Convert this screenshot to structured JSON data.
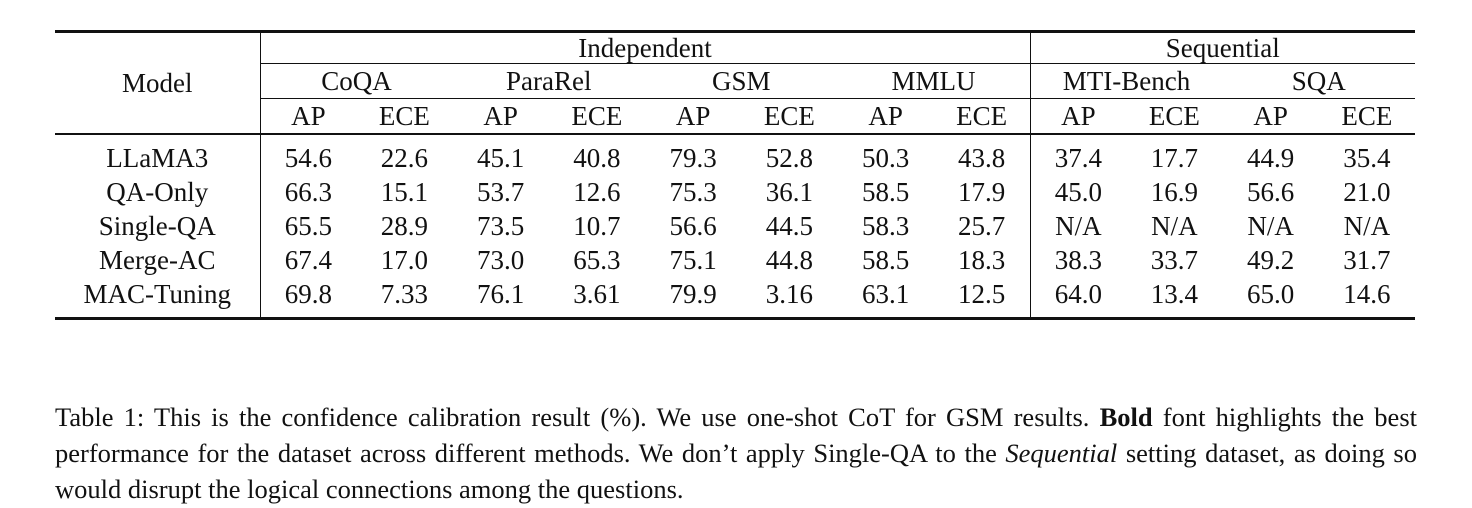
{
  "table": {
    "model_header": "Model",
    "groups": [
      {
        "label": "Independent",
        "datasets": [
          "CoQA",
          "ParaRel",
          "GSM",
          "MMLU"
        ]
      },
      {
        "label": "Sequential",
        "datasets": [
          "MTI-Bench",
          "SQA"
        ]
      }
    ],
    "metrics": [
      "AP",
      "ECE"
    ],
    "rows": [
      {
        "model": "LLaMA3",
        "bold": false,
        "values": [
          "54.6",
          "22.6",
          "45.1",
          "40.8",
          "79.3",
          "52.8",
          "50.3",
          "43.8",
          "37.4",
          "17.7",
          "44.9",
          "35.4"
        ]
      },
      {
        "model": "QA-Only",
        "bold": false,
        "values": [
          "66.3",
          "15.1",
          "53.7",
          "12.6",
          "75.3",
          "36.1",
          "58.5",
          "17.9",
          "45.0",
          "16.9",
          "56.6",
          "21.0"
        ]
      },
      {
        "model": "Single-QA",
        "bold": false,
        "values": [
          "65.5",
          "28.9",
          "73.5",
          "10.7",
          "56.6",
          "44.5",
          "58.3",
          "25.7",
          "N/A",
          "N/A",
          "N/A",
          "N/A"
        ]
      },
      {
        "model": "Merge-AC",
        "bold": false,
        "values": [
          "67.4",
          "17.0",
          "73.0",
          "65.3",
          "75.1",
          "44.8",
          "58.5",
          "18.3",
          "38.3",
          "33.7",
          "49.2",
          "31.7"
        ]
      },
      {
        "model": "MAC-Tuning",
        "bold": true,
        "values": [
          "69.8",
          "7.33",
          "76.1",
          "3.61",
          "79.9",
          "3.16",
          "63.1",
          "12.5",
          "64.0",
          "13.4",
          "65.0",
          "14.6"
        ]
      }
    ]
  },
  "caption": {
    "prefix": "Table 1: This is the confidence calibration result (%). We use one-shot CoT for GSM results. ",
    "bold_word": "Bold",
    "middle": " font highlights the best performance for the dataset across different methods. We don’t apply Single-QA to the ",
    "italic_word": "Sequential",
    "suffix": " setting dataset, as doing so would disrupt the logical connections among the questions."
  }
}
